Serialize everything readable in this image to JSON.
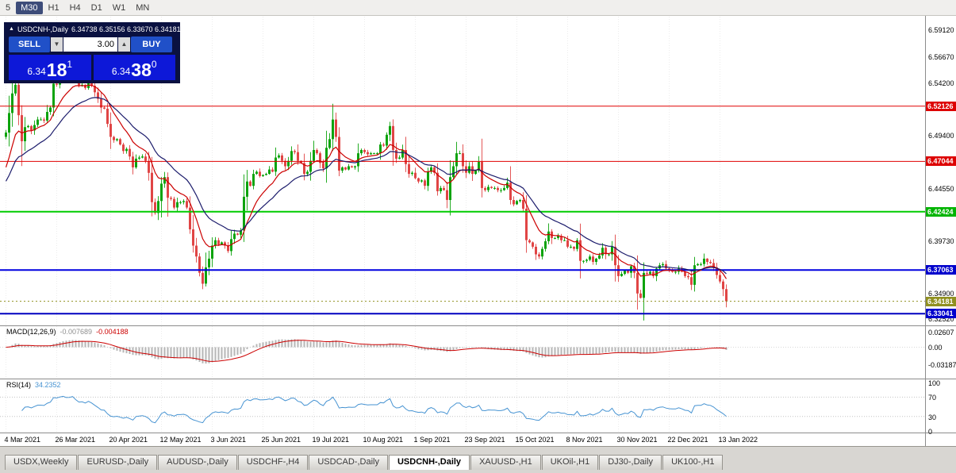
{
  "toolbar": {
    "timeframes": [
      {
        "label": "5",
        "active": false
      },
      {
        "label": "M30",
        "active": true
      },
      {
        "label": "H1",
        "active": false
      },
      {
        "label": "H4",
        "active": false
      },
      {
        "label": "D1",
        "active": false
      },
      {
        "label": "W1",
        "active": false
      },
      {
        "label": "MN",
        "active": false
      }
    ]
  },
  "trade_panel": {
    "collapse_icon": "▲",
    "title": "USDCNH-,Daily",
    "ohlc": "6.34738 6.35156 6.33670 6.34181",
    "sell_label": "SELL",
    "buy_label": "BUY",
    "volume": "3.00",
    "stepper_down_icon": "▼",
    "stepper_up_icon": "▲",
    "sell_price_small": "6.34",
    "sell_price_big": "18",
    "sell_price_sup": "1",
    "buy_price_small": "6.34",
    "buy_price_big": "38",
    "buy_price_sup": "0"
  },
  "indicators": {
    "macd": {
      "label": "MACD(12,26,9)",
      "value1": "-0.007689",
      "value2": "-0.004188",
      "axis": [
        "0.02607",
        "0.00",
        "-0.03187"
      ]
    },
    "rsi": {
      "label": "RSI(14)",
      "value": "34.2352",
      "axis": [
        "100",
        "70",
        "30",
        "0"
      ]
    }
  },
  "tabs": {
    "items": [
      "USDX,Weekly",
      "EURUSD-,Daily",
      "AUDUSD-,Daily",
      "USDCHF-,H4",
      "USDCAD-,Daily",
      "USDCNH-,Daily",
      "XAUUSD-,H1",
      "UKOil-,H1",
      "DJ30-,Daily",
      "UK100-,H1"
    ],
    "active": "USDCNH-,Daily"
  },
  "chart_data": {
    "type": "candlestick",
    "symbol": "USDCNH-",
    "timeframe": "Daily",
    "ohlc_display": {
      "open": "6.34738",
      "high": "6.35156",
      "low": "6.33670",
      "close": "6.34181"
    },
    "price_axis": {
      "min": 6.3211,
      "max": 6.5985,
      "ticks": [
        {
          "text": "6.59120",
          "price": 6.5912
        },
        {
          "text": "6.56670",
          "price": 6.5667
        },
        {
          "text": "6.54200",
          "price": 6.542
        },
        {
          "text": "6.51920",
          "price": 6.5192
        },
        {
          "text": "6.49400",
          "price": 6.494
        },
        {
          "text": "6.44550",
          "price": 6.4455
        },
        {
          "text": "6.39730",
          "price": 6.3973
        },
        {
          "text": "6.34900",
          "price": 6.349
        },
        {
          "text": "6.32520",
          "price": 6.3252
        }
      ]
    },
    "x_ticks": [
      {
        "i": 0,
        "label": "4 Mar 2021"
      },
      {
        "i": 16,
        "label": "26 Mar 2021"
      },
      {
        "i": 33,
        "label": "20 Apr 2021"
      },
      {
        "i": 49,
        "label": "12 May 2021"
      },
      {
        "i": 65,
        "label": "3 Jun 2021"
      },
      {
        "i": 81,
        "label": "25 Jun 2021"
      },
      {
        "i": 97,
        "label": "19 Jul 2021"
      },
      {
        "i": 113,
        "label": "10 Aug 2021"
      },
      {
        "i": 129,
        "label": "1 Sep 2021"
      },
      {
        "i": 145,
        "label": "23 Sep 2021"
      },
      {
        "i": 161,
        "label": "15 Oct 2021"
      },
      {
        "i": 177,
        "label": "8 Nov 2021"
      },
      {
        "i": 193,
        "label": "30 Nov 2021"
      },
      {
        "i": 209,
        "label": "22 Dec 2021"
      },
      {
        "i": 225,
        "label": "13 Jan 2022"
      }
    ],
    "closes": [
      6.497,
      6.515,
      6.533,
      6.541,
      6.513,
      6.489,
      6.502,
      6.503,
      6.499,
      6.504,
      6.509,
      6.509,
      6.508,
      6.516,
      6.52,
      6.542,
      6.541,
      6.547,
      6.551,
      6.548,
      6.549,
      6.553,
      6.546,
      6.54,
      6.541,
      6.538,
      6.544,
      6.54,
      6.534,
      6.528,
      6.52,
      6.519,
      6.505,
      6.493,
      6.49,
      6.491,
      6.486,
      6.48,
      6.482,
      6.475,
      6.465,
      6.473,
      6.474,
      6.475,
      6.471,
      6.46,
      6.433,
      6.423,
      6.434,
      6.45,
      6.456,
      6.437,
      6.436,
      6.428,
      6.433,
      6.433,
      6.434,
      6.428,
      6.408,
      6.393,
      6.383,
      6.368,
      6.358,
      6.373,
      6.381,
      6.393,
      6.398,
      6.394,
      6.396,
      6.393,
      6.388,
      6.399,
      6.404,
      6.403,
      6.407,
      6.438,
      6.452,
      6.448,
      6.459,
      6.461,
      6.457,
      6.458,
      6.459,
      6.463,
      6.461,
      6.474,
      6.476,
      6.471,
      6.466,
      6.471,
      6.48,
      6.479,
      6.471,
      6.469,
      6.459,
      6.461,
      6.471,
      6.481,
      6.478,
      6.469,
      6.464,
      6.483,
      6.491,
      6.509,
      6.493,
      6.462,
      6.465,
      6.463,
      6.466,
      6.465,
      6.466,
      6.478,
      6.481,
      6.479,
      6.477,
      6.478,
      6.478,
      6.478,
      6.486,
      6.485,
      6.495,
      6.503,
      6.481,
      6.473,
      6.474,
      6.481,
      6.468,
      6.459,
      6.46,
      6.455,
      6.452,
      6.453,
      6.448,
      6.461,
      6.465,
      6.46,
      6.443,
      6.446,
      6.444,
      6.435,
      6.456,
      6.466,
      6.478,
      6.478,
      6.466,
      6.46,
      6.466,
      6.459,
      6.462,
      6.47,
      6.446,
      6.444,
      6.447,
      6.446,
      6.446,
      6.444,
      6.444,
      6.446,
      6.451,
      6.435,
      6.431,
      6.434,
      6.435,
      6.427,
      6.398,
      6.396,
      6.392,
      6.385,
      6.383,
      6.39,
      6.397,
      6.406,
      6.4,
      6.4,
      6.402,
      6.398,
      6.398,
      6.392,
      6.392,
      6.39,
      6.398,
      6.379,
      6.379,
      6.38,
      6.383,
      6.378,
      6.381,
      6.384,
      6.391,
      6.385,
      6.385,
      6.392,
      6.375,
      6.365,
      6.367,
      6.37,
      6.368,
      6.374,
      6.368,
      6.349,
      6.345,
      6.368,
      6.367,
      6.369,
      6.365,
      6.372,
      6.375,
      6.376,
      6.372,
      6.37,
      6.369,
      6.369,
      6.372,
      6.369,
      6.365,
      6.364,
      6.357,
      6.375,
      6.376,
      6.376,
      6.381,
      6.378,
      6.377,
      6.373,
      6.366,
      6.36,
      6.353,
      6.3418
    ],
    "colors": {
      "up": "#0ca30c",
      "down": "#e04545",
      "grid": "#ececec",
      "macd_hist": "#b6b6b6",
      "macd_signal": "#cc0000",
      "rsi": "#4693d2"
    },
    "moving_averages": [
      {
        "period": 10,
        "seed": 6.458,
        "color": "#cc0000"
      },
      {
        "period": 22,
        "seed": 6.448,
        "color": "#1b1b6b"
      }
    ],
    "h_lines": [
      {
        "price": 6.52126,
        "color": "#e00000",
        "width": 1
      },
      {
        "price": 6.47044,
        "color": "#e00000",
        "width": 1
      },
      {
        "price": 6.42424,
        "color": "#00cc00",
        "width": 2
      },
      {
        "price": 6.37063,
        "color": "#0000e0",
        "width": 2
      },
      {
        "price": 6.33041,
        "color": "#0000c0",
        "width": 2
      },
      {
        "price": 6.34181,
        "color": "#909020",
        "width": 1,
        "dash": "2,3"
      }
    ],
    "badges": [
      {
        "text": "6.52126",
        "price": 6.52126,
        "color": "#dd0000"
      },
      {
        "text": "6.47044",
        "price": 6.47044,
        "color": "#dd0000"
      },
      {
        "text": "6.42424",
        "price": 6.42424,
        "color": "#00b400"
      },
      {
        "text": "6.37063",
        "price": 6.37063,
        "color": "#0000cc"
      },
      {
        "text": "6.34181",
        "price": 6.34181,
        "color": "#909020",
        "current": true
      },
      {
        "text": "6.33041",
        "price": 6.33041,
        "color": "#0000cc"
      }
    ],
    "macd": {
      "params": [
        12,
        26,
        9
      ],
      "display_values": [
        -0.007689,
        -0.004188
      ],
      "axis_ticks": [
        0.02607,
        0,
        -0.03187
      ]
    },
    "rsi": {
      "period": 14,
      "display_value": 34.2352,
      "levels": [
        70,
        30
      ],
      "axis_ticks": [
        100,
        70,
        30,
        0
      ]
    }
  }
}
